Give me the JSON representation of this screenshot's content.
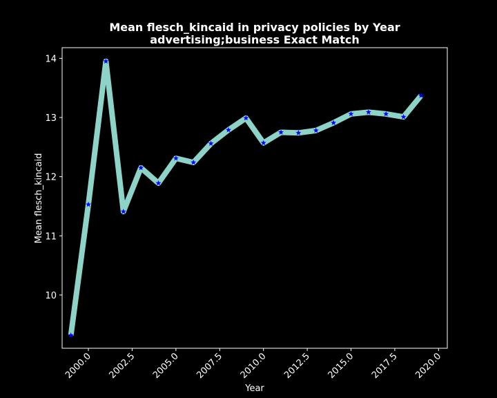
{
  "chart_data": {
    "type": "line",
    "title_line1": "Mean flesch_kincaid in privacy policies by Year",
    "title_line2": "advertising;business Exact Match",
    "xlabel": "Year",
    "ylabel": "Mean flesch_kincaid",
    "xlim": [
      1998.5,
      2020.5
    ],
    "ylim": [
      9.1,
      14.18
    ],
    "x_ticks": [
      2000.0,
      2002.5,
      2005.0,
      2007.5,
      2010.0,
      2012.5,
      2015.0,
      2017.5,
      2020.0
    ],
    "x_tick_labels": [
      "2000.0",
      "2002.5",
      "2005.0",
      "2007.5",
      "2010.0",
      "2012.5",
      "2015.0",
      "2017.5",
      "2020.0"
    ],
    "y_ticks": [
      10,
      11,
      12,
      13,
      14
    ],
    "y_tick_labels": [
      "10",
      "11",
      "12",
      "13",
      "14"
    ],
    "grid": false,
    "series": [
      {
        "x": [
          1999,
          2000,
          2001,
          2002,
          2003,
          2004,
          2005,
          2006,
          2007,
          2008,
          2009,
          2010,
          2011,
          2012,
          2013,
          2014,
          2015,
          2016,
          2017,
          2018,
          2019
        ],
        "values": [
          9.32,
          11.53,
          13.95,
          11.41,
          12.15,
          11.89,
          12.31,
          12.24,
          12.56,
          12.79,
          12.99,
          12.57,
          12.75,
          12.74,
          12.78,
          12.91,
          13.06,
          13.09,
          13.06,
          13.01,
          13.37
        ],
        "line_color": "#8dd3c7",
        "marker_color": "#0000ff",
        "marker": "star"
      }
    ]
  }
}
